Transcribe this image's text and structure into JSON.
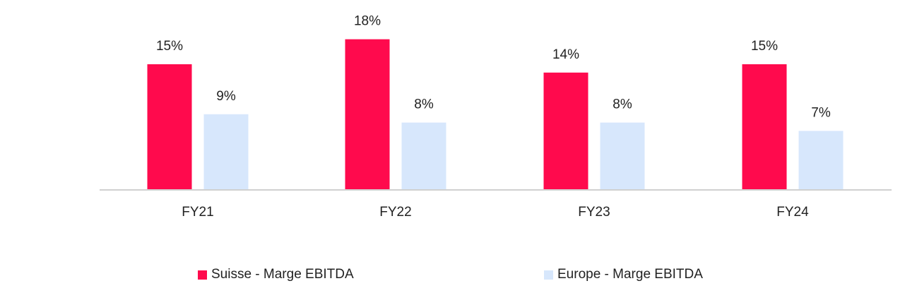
{
  "chart_data": {
    "type": "bar",
    "categories": [
      "FY21",
      "FY22",
      "FY23",
      "FY24"
    ],
    "series": [
      {
        "name": "Suisse - Marge EBITDA",
        "values": [
          15,
          18,
          14,
          15
        ],
        "labels": [
          "15%",
          "18%",
          "14%",
          "15%"
        ],
        "color": "#ff0a4d"
      },
      {
        "name": "Europe - Marge EBITDA",
        "values": [
          9,
          8,
          8,
          7
        ],
        "labels": [
          "9%",
          "8%",
          "8%",
          "7%"
        ],
        "color": "#d7e7fc"
      }
    ],
    "ylim": [
      0,
      18
    ],
    "grid": false,
    "legend_position": "bottom"
  }
}
